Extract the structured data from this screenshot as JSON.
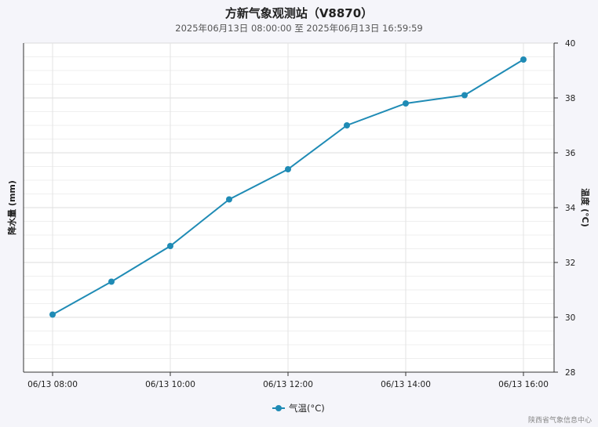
{
  "header": {
    "title": "方新气象观测站（V8870）",
    "subtitle": "2025年06月13日 08:00:00 至 2025年06月13日 16:59:59"
  },
  "footer": {
    "credit": "陕西省气象信息中心"
  },
  "chart_data": {
    "type": "line",
    "title": "方新气象观测站（V8870）",
    "subtitle": "2025年06月13日 08:00:00 至 2025年06月13日 16:59:59",
    "x": [
      "06/13 08:00",
      "06/13 09:00",
      "06/13 10:00",
      "06/13 11:00",
      "06/13 12:00",
      "06/13 13:00",
      "06/13 14:00",
      "06/13 15:00",
      "06/13 16:00"
    ],
    "xticks": [
      "06/13 08:00",
      "06/13 10:00",
      "06/13 12:00",
      "06/13 14:00",
      "06/13 16:00"
    ],
    "series": [
      {
        "name": "气温(°C)",
        "axis": "right",
        "values": [
          30.1,
          31.3,
          32.6,
          34.3,
          35.4,
          37.0,
          37.8,
          38.1,
          39.4
        ]
      }
    ],
    "ylabel_left": "降水量 (mm)",
    "ylabel_right": "温度 (°C)",
    "yrange_right": [
      28,
      40
    ],
    "yticks_right": [
      28,
      30,
      32,
      34,
      36,
      38,
      40
    ],
    "grid": true,
    "legend_position": "bottom-center",
    "colors": {
      "line": "#1f8bb5",
      "grid": "#e3e3e3",
      "axis": "#333333",
      "background": "#ffffff"
    }
  }
}
